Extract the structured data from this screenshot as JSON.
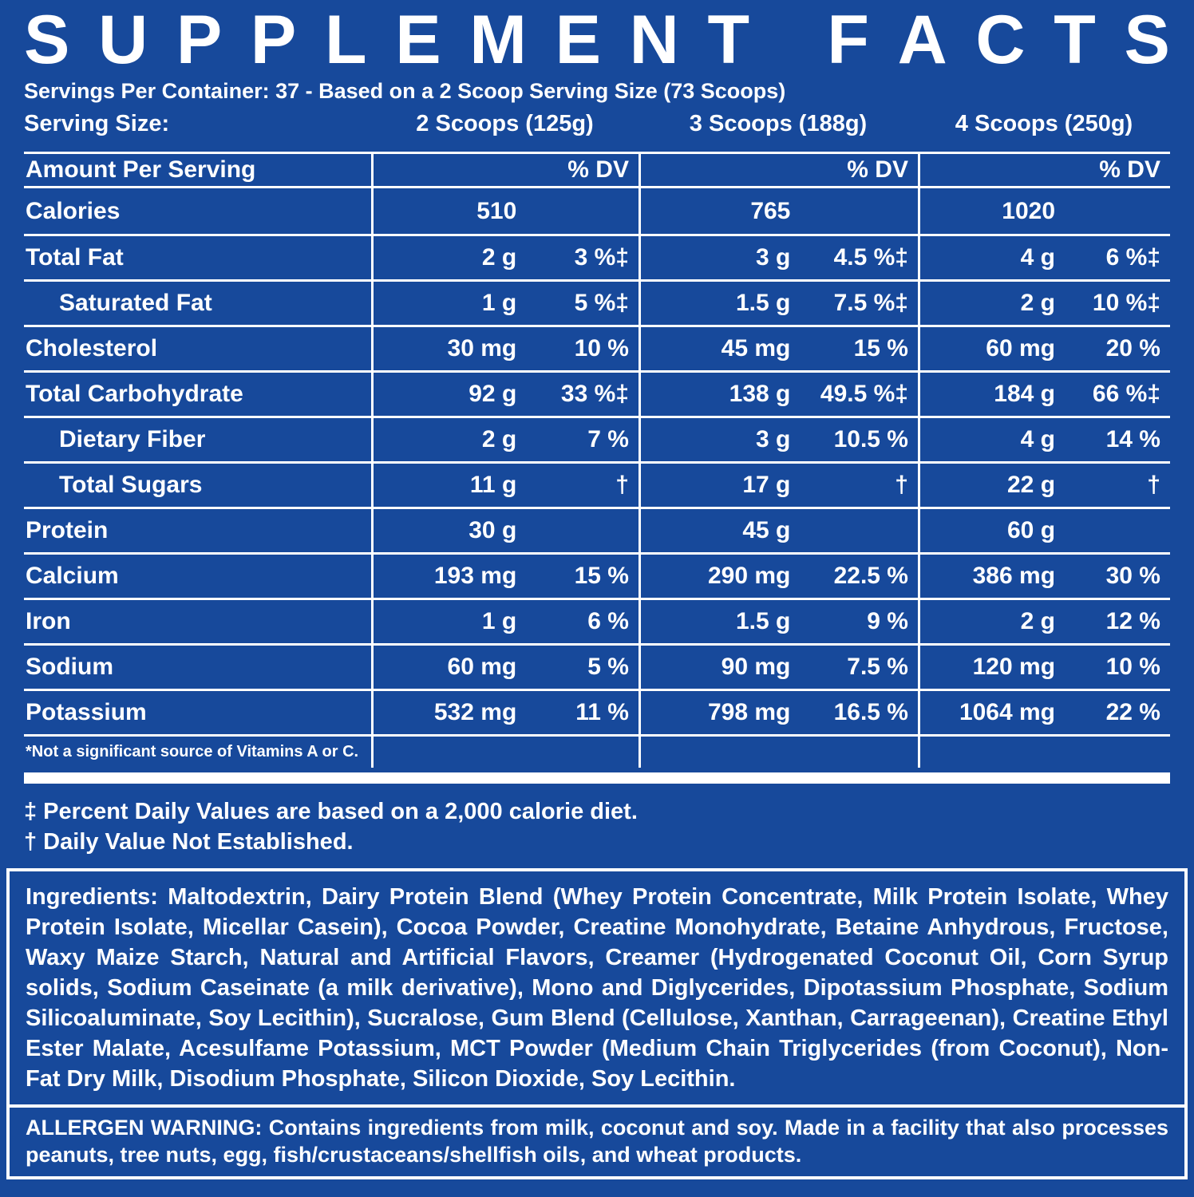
{
  "colors": {
    "background": "#17499b",
    "text": "#ffffff"
  },
  "label": {
    "title": "SUPPLEMENT FACTS",
    "servings_line": "Servings Per Container: 37 - Based on a 2 Scoop Serving Size (73 Scoops)",
    "serving_size_label": "Serving Size:",
    "serving_sizes": [
      "2 Scoops (125g)",
      "3 Scoops (188g)",
      "4 Scoops (250g)"
    ],
    "table": {
      "header_label": "Amount Per Serving",
      "dv_header": "% DV",
      "rows": [
        {
          "label": "Calories",
          "indent": false,
          "cols": [
            {
              "amount": "510",
              "dv": ""
            },
            {
              "amount": "765",
              "dv": ""
            },
            {
              "amount": "1020",
              "dv": ""
            }
          ]
        },
        {
          "label": "Total Fat",
          "indent": false,
          "cols": [
            {
              "amount": "2 g",
              "dv": "3 %‡"
            },
            {
              "amount": "3 g",
              "dv": "4.5 %‡"
            },
            {
              "amount": "4 g",
              "dv": "6 %‡"
            }
          ]
        },
        {
          "label": "Saturated Fat",
          "indent": true,
          "cols": [
            {
              "amount": "1 g",
              "dv": "5 %‡"
            },
            {
              "amount": "1.5 g",
              "dv": "7.5 %‡"
            },
            {
              "amount": "2 g",
              "dv": "10 %‡"
            }
          ]
        },
        {
          "label": "Cholesterol",
          "indent": false,
          "cols": [
            {
              "amount": "30 mg",
              "dv": "10 %"
            },
            {
              "amount": "45 mg",
              "dv": "15 %"
            },
            {
              "amount": "60 mg",
              "dv": "20 %"
            }
          ]
        },
        {
          "label": "Total Carbohydrate",
          "indent": false,
          "cols": [
            {
              "amount": "92 g",
              "dv": "33 %‡"
            },
            {
              "amount": "138 g",
              "dv": "49.5 %‡"
            },
            {
              "amount": "184 g",
              "dv": "66 %‡"
            }
          ]
        },
        {
          "label": "Dietary Fiber",
          "indent": true,
          "cols": [
            {
              "amount": "2 g",
              "dv": "7 %"
            },
            {
              "amount": "3 g",
              "dv": "10.5 %"
            },
            {
              "amount": "4 g",
              "dv": "14 %"
            }
          ]
        },
        {
          "label": "Total Sugars",
          "indent": true,
          "cols": [
            {
              "amount": "11 g",
              "dv": "†"
            },
            {
              "amount": "17 g",
              "dv": "†"
            },
            {
              "amount": "22 g",
              "dv": "†"
            }
          ]
        },
        {
          "label": "Protein",
          "indent": false,
          "cols": [
            {
              "amount": "30 g",
              "dv": ""
            },
            {
              "amount": "45 g",
              "dv": ""
            },
            {
              "amount": "60 g",
              "dv": ""
            }
          ]
        },
        {
          "label": "Calcium",
          "indent": false,
          "cols": [
            {
              "amount": "193 mg",
              "dv": "15 %"
            },
            {
              "amount": "290 mg",
              "dv": "22.5 %"
            },
            {
              "amount": "386 mg",
              "dv": "30 %"
            }
          ]
        },
        {
          "label": "Iron",
          "indent": false,
          "cols": [
            {
              "amount": "1 g",
              "dv": "6 %"
            },
            {
              "amount": "1.5 g",
              "dv": "9 %"
            },
            {
              "amount": "2 g",
              "dv": "12 %"
            }
          ]
        },
        {
          "label": "Sodium",
          "indent": false,
          "cols": [
            {
              "amount": "60 mg",
              "dv": "5 %"
            },
            {
              "amount": "90 mg",
              "dv": "7.5 %"
            },
            {
              "amount": "120 mg",
              "dv": "10 %"
            }
          ]
        },
        {
          "label": "Potassium",
          "indent": false,
          "cols": [
            {
              "amount": "532 mg",
              "dv": "11 %"
            },
            {
              "amount": "798 mg",
              "dv": "16.5 %"
            },
            {
              "amount": "1064 mg",
              "dv": "22 %"
            }
          ]
        }
      ]
    },
    "footnote_asterisk": "*Not a significant source of Vitamins A or C.",
    "footnotes": [
      "‡ Percent Daily Values are based on a 2,000 calorie diet.",
      "† Daily Value Not Established."
    ],
    "ingredients": {
      "heading": "Ingredients:",
      "text": "Maltodextrin, Dairy Protein Blend (Whey Protein Concentrate, Milk Protein Isolate, Whey Protein Isolate, Micellar Casein), Cocoa Powder, Creatine Monohydrate, Betaine Anhydrous, Fructose, Waxy Maize Starch, Natural and Artificial Flavors, Creamer (Hydrogenated Coconut Oil, Corn Syrup solids, Sodium Caseinate (a milk derivative), Mono and Diglycerides, Dipotassium Phosphate, Sodium Silicoaluminate, Soy Lecithin), Sucralose, Gum Blend (Cellulose, Xanthan, Carrageenan), Creatine Ethyl Ester Malate, Acesulfame Potassium, MCT Powder (Medium Chain Triglycerides (from Coconut), Non-Fat Dry Milk, Disodium Phosphate, Silicon Dioxide, Soy Lecithin."
    },
    "allergen": {
      "heading": "ALLERGEN WARNING:",
      "text": "Contains ingredients from milk, coconut and soy. Made in a facility that also processes peanuts, tree nuts, egg, fish/crustaceans/shellfish oils, and wheat products."
    }
  }
}
